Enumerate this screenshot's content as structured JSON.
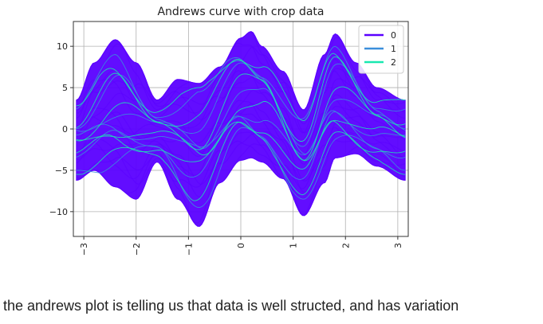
{
  "chart_data": {
    "type": "line",
    "title": "Andrews curve with crop data",
    "xlabel": "",
    "ylabel": "",
    "xlim": [
      -3.2,
      3.2
    ],
    "ylim": [
      -13,
      13
    ],
    "x_ticks": [
      -3,
      -2,
      -1,
      0,
      1,
      2,
      3
    ],
    "x_tick_labels": [
      "−3",
      "−2",
      "−1",
      "0",
      "1",
      "2",
      "3"
    ],
    "y_ticks": [
      -10,
      -5,
      0,
      5,
      10
    ],
    "y_tick_labels": [
      "−10",
      "−5",
      "0",
      "5",
      "10"
    ],
    "grid": true,
    "legend_position": "top-right",
    "series": [
      {
        "name": "0",
        "color": "#5a00ff",
        "envelope_x": [
          -3.14,
          -2.8,
          -2.4,
          -2.0,
          -1.6,
          -1.2,
          -0.8,
          -0.4,
          0.0,
          0.2,
          0.4,
          0.8,
          1.2,
          1.6,
          1.8,
          2.2,
          2.6,
          3.14
        ],
        "envelope_upper": [
          3.5,
          8.0,
          10.8,
          8.0,
          3.5,
          6.0,
          5.5,
          7.5,
          11.0,
          11.8,
          10.0,
          7.0,
          2.3,
          9.0,
          11.5,
          8.0,
          5.0,
          3.5
        ],
        "envelope_lower": [
          -6.2,
          -5.0,
          -7.0,
          -8.5,
          -4.0,
          -8.5,
          -11.8,
          -6.5,
          -3.8,
          -3.5,
          -4.0,
          -6.0,
          -10.5,
          -6.5,
          -3.5,
          -3.0,
          -4.5,
          -6.2
        ]
      },
      {
        "name": "1",
        "color": "#3a8edb",
        "envelope_x": [
          -3.14,
          -2.4,
          -1.6,
          -0.8,
          0.0,
          0.4,
          1.2,
          1.8,
          2.6,
          3.14
        ],
        "envelope_upper": [
          3.0,
          9.0,
          2.5,
          4.5,
          9.5,
          8.5,
          1.5,
          10.0,
          4.0,
          3.0
        ],
        "envelope_lower": [
          -5.0,
          -5.5,
          -3.0,
          -9.5,
          -2.0,
          -3.0,
          -8.5,
          -2.5,
          -3.5,
          -5.0
        ]
      },
      {
        "name": "2",
        "color": "#19e8b0",
        "envelope_x": [
          -3.14,
          -2.4,
          -1.6,
          -0.8,
          0.0,
          0.4,
          1.2,
          1.8,
          2.6,
          3.14
        ],
        "envelope_upper": [
          2.8,
          8.5,
          3.0,
          5.0,
          10.5,
          9.5,
          1.0,
          10.5,
          4.5,
          3.5
        ],
        "envelope_lower": [
          -5.5,
          -5.0,
          -3.5,
          -9.0,
          -1.5,
          -2.0,
          -8.0,
          -3.0,
          -4.0,
          -5.5
        ]
      }
    ]
  },
  "caption": "the andrews plot is telling us that data is well structed, and has variation"
}
